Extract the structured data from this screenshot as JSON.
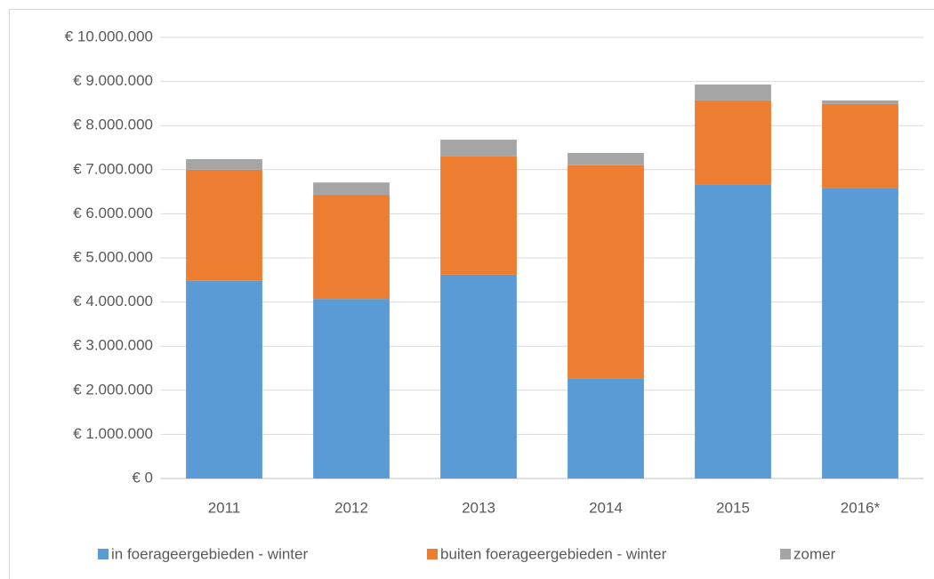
{
  "chart_data": {
    "type": "stacked_bar",
    "categories": [
      "2011",
      "2012",
      "2013",
      "2014",
      "2015",
      "2016*"
    ],
    "series": [
      {
        "name": "in foerageergebieden - winter",
        "color": "#5b9bd5",
        "values": [
          4480000,
          4070000,
          4620000,
          2260000,
          6670000,
          6590000
        ]
      },
      {
        "name": "buiten foerageergebieden - winter",
        "color": "#ed7d31",
        "values": [
          2520000,
          2360000,
          2680000,
          4840000,
          1900000,
          1900000
        ]
      },
      {
        "name": "zomer",
        "color": "#a5a5a5",
        "values": [
          240000,
          280000,
          380000,
          280000,
          360000,
          80000
        ]
      }
    ],
    "ylim": [
      0,
      10000000
    ],
    "yticks": [
      {
        "value": 0,
        "label": "€ 0"
      },
      {
        "value": 1000000,
        "label": "€ 1.000.000"
      },
      {
        "value": 2000000,
        "label": "€ 2.000.000"
      },
      {
        "value": 3000000,
        "label": "€ 3.000.000"
      },
      {
        "value": 4000000,
        "label": "€ 4.000.000"
      },
      {
        "value": 5000000,
        "label": "€ 5.000.000"
      },
      {
        "value": 6000000,
        "label": "€ 6.000.000"
      },
      {
        "value": 7000000,
        "label": "€ 7.000.000"
      },
      {
        "value": 8000000,
        "label": "€ 8.000.000"
      },
      {
        "value": 9000000,
        "label": "€ 9.000.000"
      },
      {
        "value": 10000000,
        "label": "€ 10.000.000"
      }
    ],
    "grid": true,
    "legend": "bottom"
  }
}
